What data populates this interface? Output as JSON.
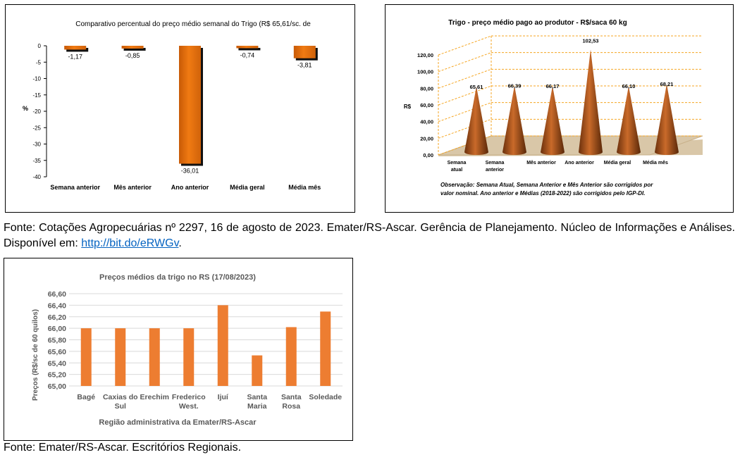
{
  "charts": [
    {
      "title": "Comparativo percentual do preço médio semanal do Trigo (R$ 65,61/sc. de",
      "ylabel": "%"
    },
    {
      "title": "Trigo - preço médio pago ao produtor - R$/saca 60 kg",
      "ylabel": "R$",
      "note": [
        "Observação: Semana Atual, Semana Anterior e Mês Anterior são corrigidos por",
        "valor nominal. Ano anterior e Médias (2018-2022) são corrigidos pelo IGP-DI."
      ]
    },
    {
      "title": "Preços médios da trigo no RS (17/08/2023)",
      "ylabel": "Preços (R$/sc de 60 quilos)",
      "xlabel": "Região administrativa da Emater/RS-Ascar"
    }
  ],
  "captions": {
    "first_text": "Fonte: Cotações Agropecuárias nº 2297, 16 de agosto de 2023. Emater/RS-Ascar. Gerência de Planejamento. Núcleo de Informações e Análises. Disponível em: ",
    "first_link": "http://bit.do/eRWGv",
    "first_end": ".",
    "second": "Fonte: Emater/RS-Ascar. Escritórios Regionais."
  },
  "colors": {
    "orange_bar": "#e46c0a",
    "orange_light": "#ed7d31",
    "cone_dark": "#7f3f12",
    "grid_dash": "#f5a623",
    "floor": "#d9c7a8",
    "grid": "#d9d9d9"
  },
  "chart_data": [
    {
      "type": "bar",
      "categories": [
        "Semana anterior",
        "Mês anterior",
        "Ano anterior",
        "Média geral",
        "Média mês"
      ],
      "values": [
        -1.17,
        -0.85,
        -36.01,
        -0.74,
        -3.81
      ],
      "value_labels": [
        "-1,17",
        "-0,85",
        "-36,01",
        "-0,74",
        "-3,81"
      ],
      "ylim": [
        -40,
        0
      ],
      "yticks": [
        0,
        -5,
        -10,
        -15,
        -20,
        -25,
        -30,
        -35,
        -40
      ],
      "grid": false
    },
    {
      "type": "bar",
      "categories": [
        "Semana atual",
        "Semana anterior",
        "Mês anterior",
        "Ano anterior",
        "Média geral",
        "Média mês"
      ],
      "category_lines": [
        [
          "Semana",
          "atual"
        ],
        [
          "Semana",
          "anterior"
        ],
        [
          "Mês anterior"
        ],
        [
          "Ano anterior"
        ],
        [
          "Média geral"
        ],
        [
          "Média mês"
        ]
      ],
      "values": [
        65.61,
        66.39,
        66.17,
        102.53,
        66.1,
        68.21
      ],
      "value_labels": [
        "65,61",
        "66,39",
        "66,17",
        "102,53",
        "66,10",
        "68,21"
      ],
      "ylim": [
        0,
        120
      ],
      "yticks": [
        0,
        20,
        40,
        60,
        80,
        100,
        120
      ],
      "ytick_labels": [
        "0,00",
        "20,00",
        "40,00",
        "60,00",
        "80,00",
        "100,00",
        "120,00"
      ],
      "grid": true
    },
    {
      "type": "bar",
      "categories": [
        "Bagé",
        "Caxias do Sul",
        "Erechim",
        "Frederico West.",
        "Ijuí",
        "Santa Maria",
        "Santa Rosa",
        "Soledade"
      ],
      "category_lines": [
        [
          "Bagé"
        ],
        [
          "Caxias do",
          "Sul"
        ],
        [
          "Erechim"
        ],
        [
          "Frederico",
          "West."
        ],
        [
          "Ijuí"
        ],
        [
          "Santa",
          "Maria"
        ],
        [
          "Santa",
          "Rosa"
        ],
        [
          "Soledade"
        ]
      ],
      "values": [
        66.0,
        66.0,
        66.0,
        66.0,
        66.4,
        65.53,
        66.02,
        66.29
      ],
      "ylim": [
        65.0,
        66.6
      ],
      "yticks": [
        65.0,
        65.2,
        65.4,
        65.6,
        65.8,
        66.0,
        66.2,
        66.4,
        66.6
      ],
      "ytick_labels": [
        "65,00",
        "65,20",
        "65,40",
        "65,60",
        "65,80",
        "66,00",
        "66,20",
        "66,40",
        "66,60"
      ],
      "grid": true
    }
  ]
}
